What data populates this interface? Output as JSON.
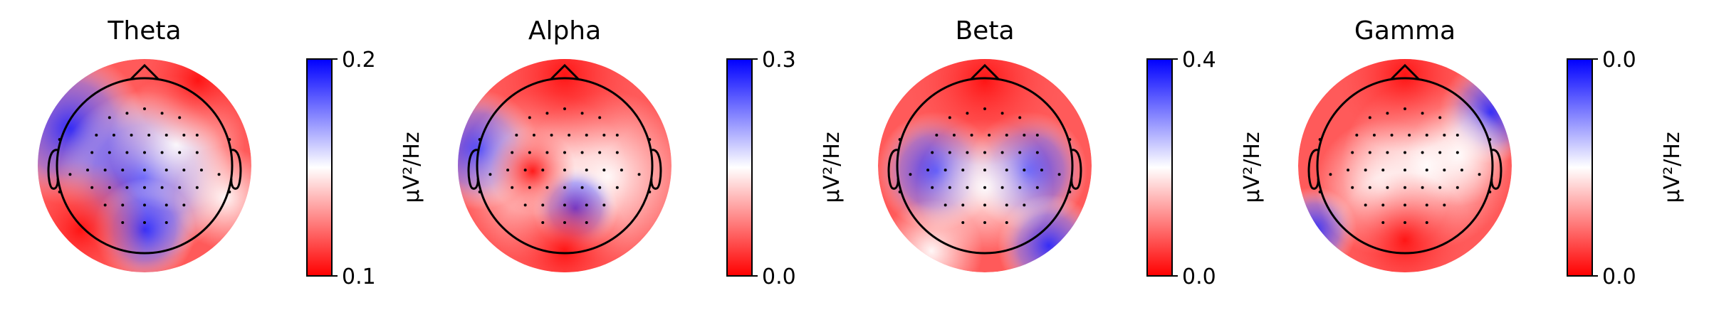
{
  "chart_data": [
    {
      "type": "topomap",
      "title": "Theta",
      "colorbar_label": "µV²/Hz",
      "ylim": [
        0.1,
        0.2
      ],
      "yticks": [
        0.1,
        0.2
      ]
    },
    {
      "type": "topomap",
      "title": "Alpha",
      "colorbar_label": "µV²/Hz",
      "ylim": [
        0,
        0.3
      ],
      "yticks": [
        {
          "value": 0,
          "label": "0.0"
        },
        0.3
      ]
    },
    {
      "type": "topomap",
      "title": "Beta",
      "colorbar_label": "µV²/Hz",
      "ylim": [
        0,
        0.4
      ],
      "yticks": [
        {
          "value": 0,
          "label": "0.0"
        },
        0.4
      ]
    },
    {
      "type": "topomap",
      "title": "Gamma",
      "colorbar_label": "µV²/Hz",
      "ylim": [
        0,
        0.04
      ],
      "yticks": [
        {
          "value": 0,
          "label": "0.0"
        },
        {
          "value": 0.04,
          "label": "0.0"
        }
      ]
    }
  ]
}
